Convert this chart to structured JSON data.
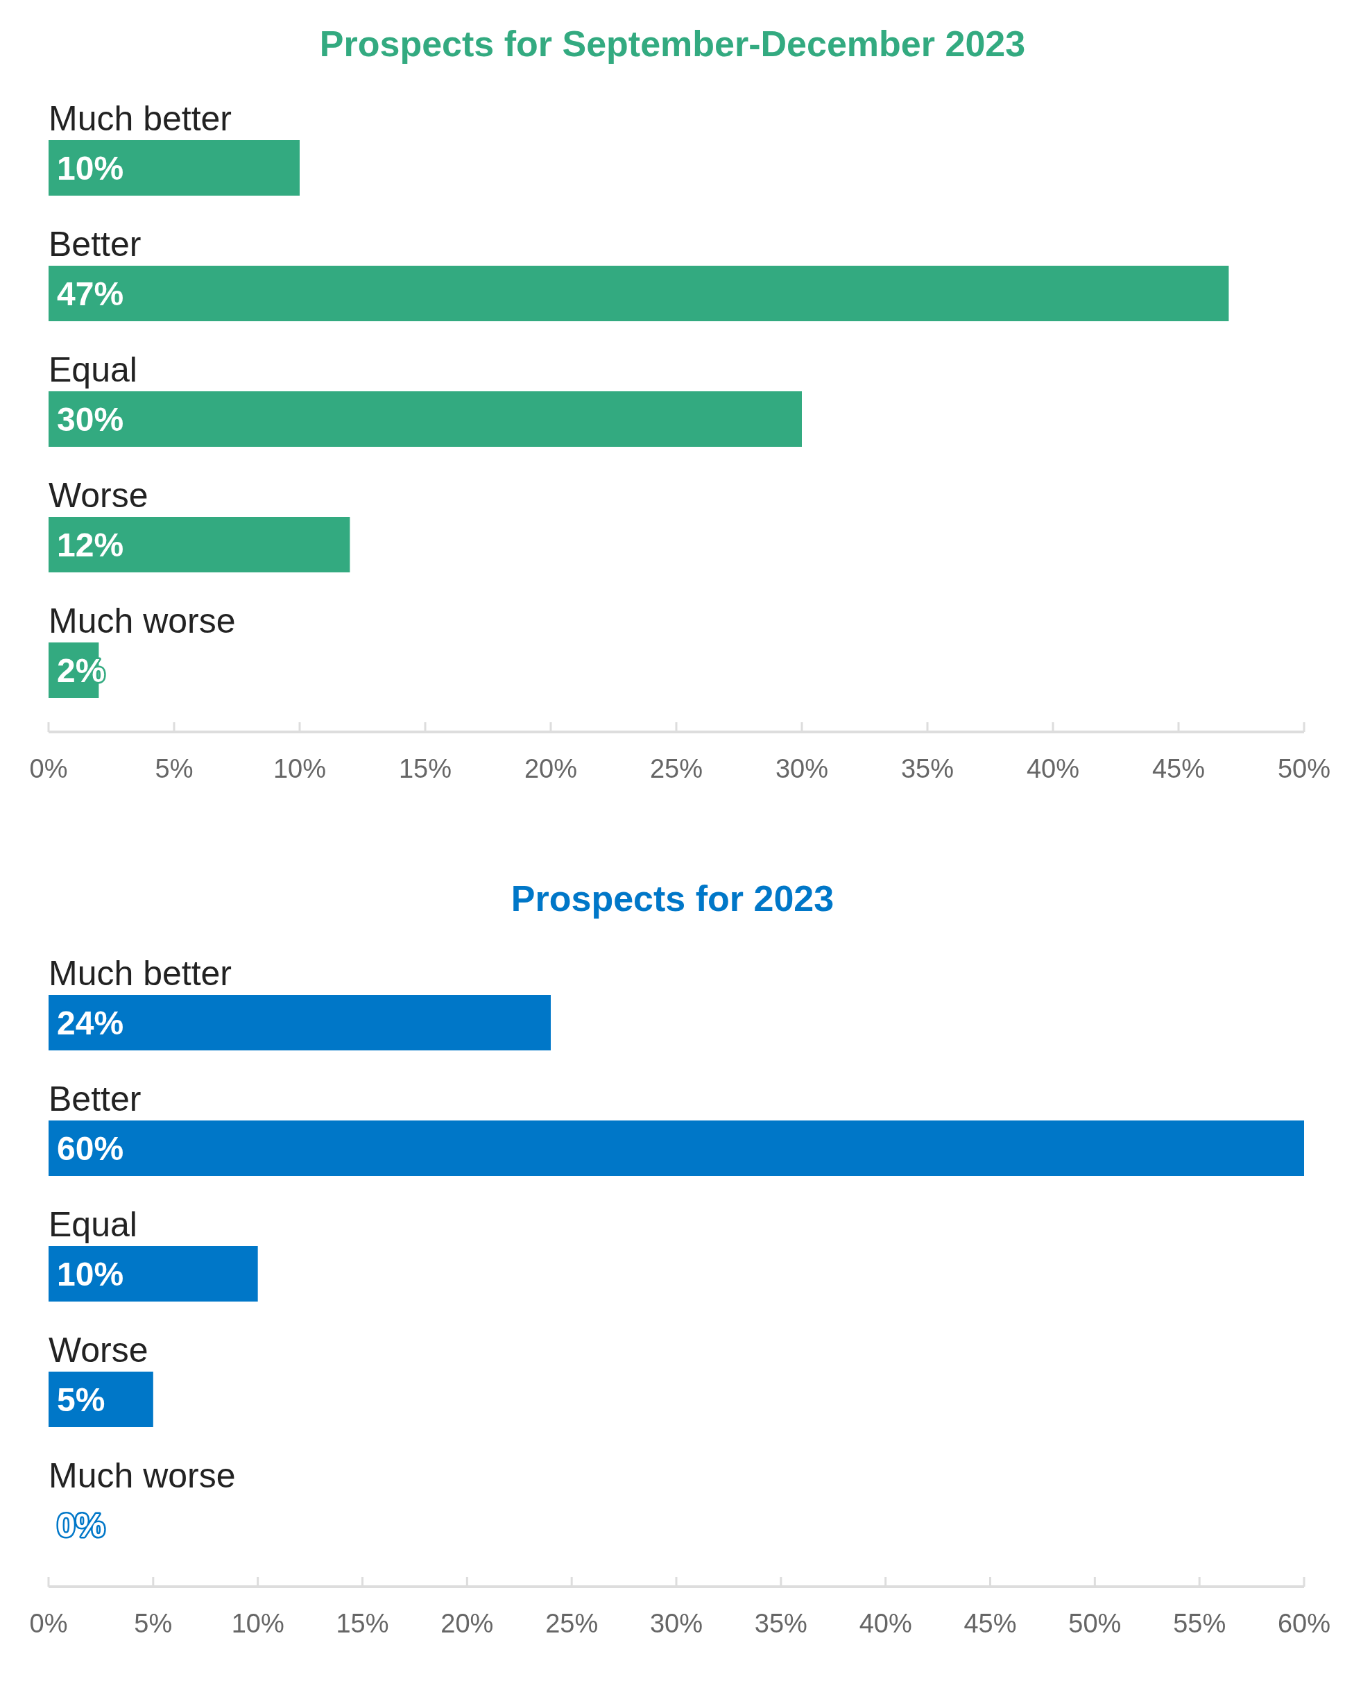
{
  "chart_data": [
    {
      "type": "bar",
      "orientation": "horizontal",
      "title": "Prospects for September-December 2023",
      "categories": [
        "Much better",
        "Better",
        "Equal",
        "Worse",
        "Much worse"
      ],
      "values": [
        10,
        47,
        30,
        12,
        2
      ],
      "value_labels": [
        "10%",
        "47%",
        "30%",
        "12%",
        "2%"
      ],
      "color": "#33aa80",
      "xlim": [
        0,
        50
      ],
      "xticks": [
        {
          "value": 0,
          "label": "0%"
        },
        {
          "value": 5,
          "label": "5%"
        },
        {
          "value": 10,
          "label": "10%"
        },
        {
          "value": 15,
          "label": "15%"
        },
        {
          "value": 20,
          "label": "20%"
        },
        {
          "value": 25,
          "label": "25%"
        },
        {
          "value": 30,
          "label": "30%"
        },
        {
          "value": 35,
          "label": "35%"
        },
        {
          "value": 40,
          "label": "40%"
        },
        {
          "value": 45,
          "label": "45%"
        },
        {
          "value": 50,
          "label": "50%"
        }
      ]
    },
    {
      "type": "bar",
      "orientation": "horizontal",
      "title": "Prospects for 2023",
      "categories": [
        "Much better",
        "Better",
        "Equal",
        "Worse",
        "Much worse"
      ],
      "values": [
        24,
        60,
        10,
        5,
        0
      ],
      "value_labels": [
        "24%",
        "60%",
        "10%",
        "5%",
        "0%"
      ],
      "color": "#0077c8",
      "xlim": [
        0,
        60
      ],
      "xticks": [
        {
          "value": 0,
          "label": "0%"
        },
        {
          "value": 5,
          "label": "5%"
        },
        {
          "value": 10,
          "label": "10%"
        },
        {
          "value": 15,
          "label": "15%"
        },
        {
          "value": 20,
          "label": "20%"
        },
        {
          "value": 25,
          "label": "25%"
        },
        {
          "value": 30,
          "label": "30%"
        },
        {
          "value": 35,
          "label": "35%"
        },
        {
          "value": 40,
          "label": "40%"
        },
        {
          "value": 45,
          "label": "45%"
        },
        {
          "value": 50,
          "label": "50%"
        },
        {
          "value": 55,
          "label": "55%"
        },
        {
          "value": 60,
          "label": "60%"
        }
      ]
    }
  ]
}
